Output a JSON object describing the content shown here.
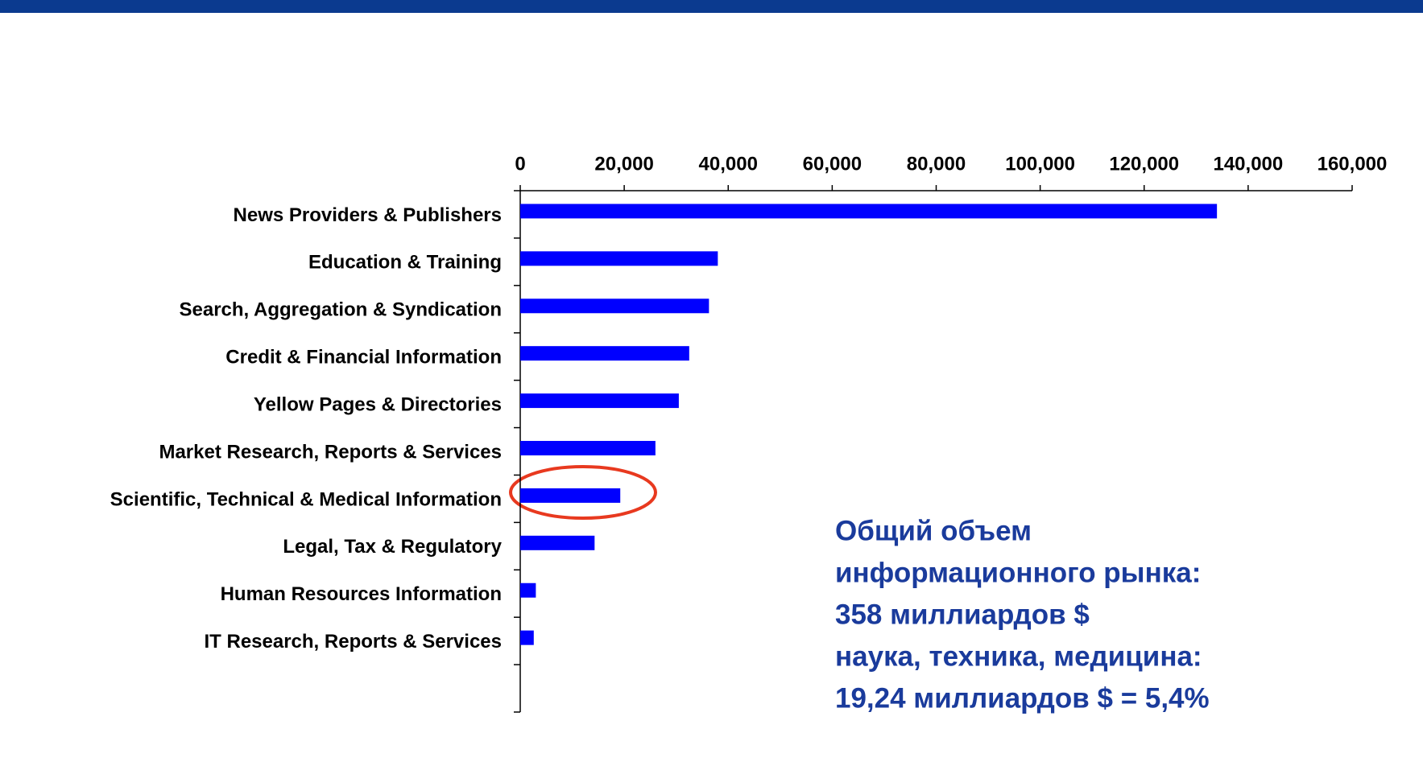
{
  "chart_data": {
    "type": "bar",
    "orientation": "horizontal",
    "categories": [
      "News Providers & Publishers",
      "Education & Training",
      "Search, Aggregation & Syndication",
      "Credit & Financial Information",
      "Yellow Pages & Directories",
      "Market Research, Reports & Services",
      "Scientific, Technical & Medical Information",
      "Legal, Tax & Regulatory",
      "Human Resources Information",
      "IT Research, Reports & Services",
      null
    ],
    "values": [
      134000,
      38000,
      36300,
      32500,
      30500,
      26000,
      19240,
      14300,
      3000,
      2600,
      null
    ],
    "color": "#0000ff",
    "xlim": [
      0,
      160000
    ],
    "xticks": [
      0,
      {
        "value": 20000,
        "label": "20,000"
      },
      {
        "value": 40000,
        "label": "40,000"
      },
      {
        "value": 60000,
        "label": "60,000"
      },
      {
        "value": 80000,
        "label": "80,000"
      },
      {
        "value": 100000,
        "label": "100,000"
      },
      {
        "value": 120000,
        "label": "120,000"
      },
      {
        "value": 140000,
        "label": "140,000"
      },
      {
        "value": 160000,
        "label": "160,000"
      }
    ],
    "annotation": [
      "Общий объем",
      "информационного рынка:",
      "358 миллиардов $",
      "наука, техника, медицина:",
      "19,24 миллиардов $ = 5,4%"
    ]
  }
}
